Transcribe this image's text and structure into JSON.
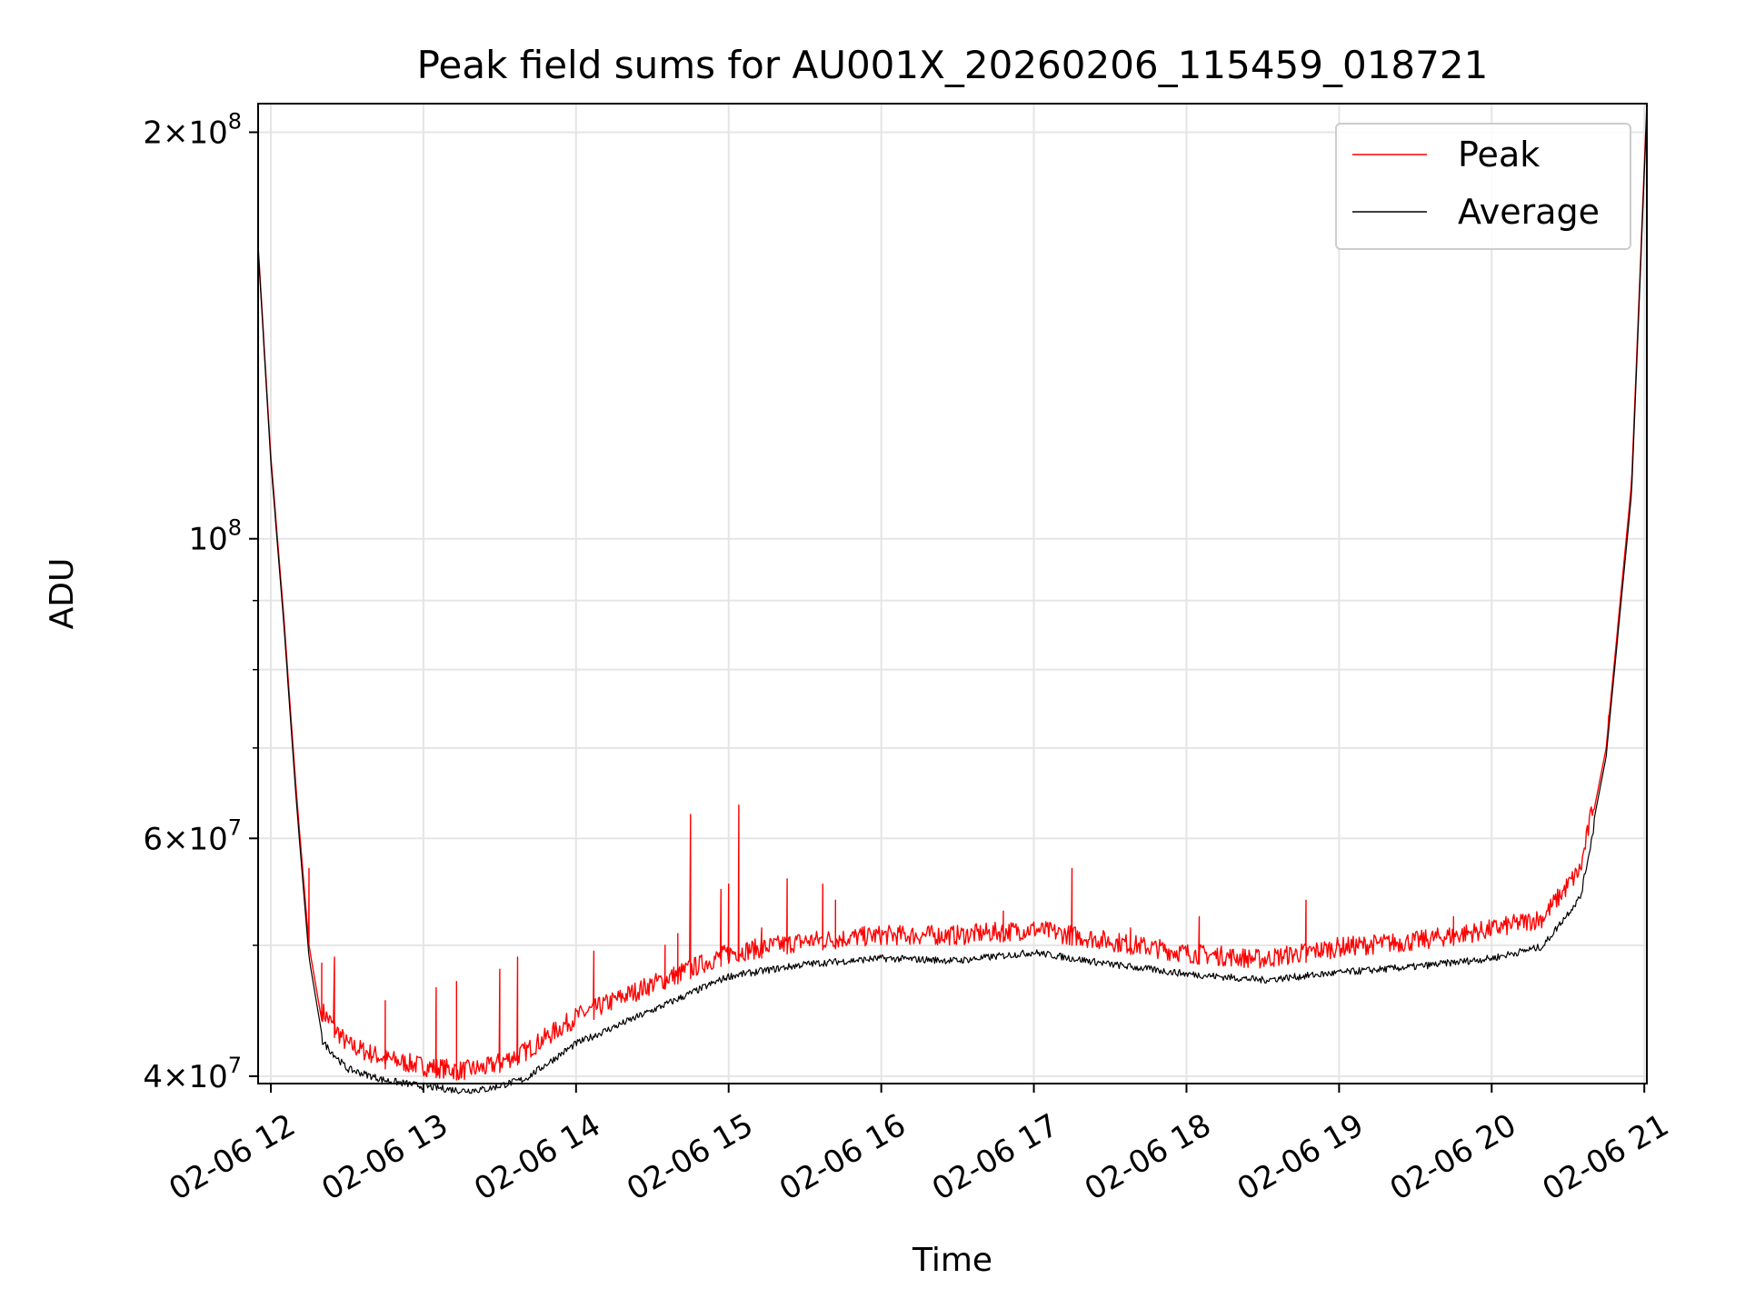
{
  "chart_data": {
    "type": "line",
    "title": "Peak field sums for AU001X_20260206_115459_018721",
    "xlabel": "Time",
    "ylabel": "ADU",
    "yscale": "log",
    "ylim": [
      39500000,
      210000000
    ],
    "xlim": [
      "2026-02-06 11:55",
      "2026-02-06 21:01"
    ],
    "grid": true,
    "legend": {
      "placement": "top-right"
    },
    "x_ticks": [
      {
        "time": "2026-02-06 12:00",
        "label": "02-06 12"
      },
      {
        "time": "2026-02-06 13:00",
        "label": "02-06 13"
      },
      {
        "time": "2026-02-06 14:00",
        "label": "02-06 14"
      },
      {
        "time": "2026-02-06 15:00",
        "label": "02-06 15"
      },
      {
        "time": "2026-02-06 16:00",
        "label": "02-06 16"
      },
      {
        "time": "2026-02-06 17:00",
        "label": "02-06 17"
      },
      {
        "time": "2026-02-06 18:00",
        "label": "02-06 18"
      },
      {
        "time": "2026-02-06 19:00",
        "label": "02-06 19"
      },
      {
        "time": "2026-02-06 20:00",
        "label": "02-06 20"
      },
      {
        "time": "2026-02-06 21:00",
        "label": "02-06 21"
      }
    ],
    "y_ticks": [
      {
        "value": 40000000,
        "mantissa": "4",
        "exp": "7"
      },
      {
        "value": 60000000,
        "mantissa": "6",
        "exp": "7"
      },
      {
        "value": 100000000,
        "mantissa": "",
        "exp": "8"
      },
      {
        "value": 200000000,
        "mantissa": "2",
        "exp": "8"
      }
    ],
    "y_minor_ticks": [
      50000000,
      70000000,
      80000000,
      90000000
    ],
    "series": [
      {
        "name": "Peak",
        "color": "#ff0000",
        "baseline_points": [
          [
            "2026-02-06 11:55",
            165000000
          ],
          [
            "2026-02-06 12:00",
            115000000
          ],
          [
            "2026-02-06 12:05",
            88000000
          ],
          [
            "2026-02-06 12:10",
            65000000
          ],
          [
            "2026-02-06 12:15",
            50000000
          ],
          [
            "2026-02-06 12:20",
            44000000
          ],
          [
            "2026-02-06 12:30",
            41500000
          ],
          [
            "2026-02-06 12:45",
            40500000
          ],
          [
            "2026-02-06 13:00",
            40000000
          ],
          [
            "2026-02-06 13:15",
            39700000
          ],
          [
            "2026-02-06 13:25",
            39900000
          ],
          [
            "2026-02-06 13:40",
            41000000
          ],
          [
            "2026-02-06 14:00",
            43500000
          ],
          [
            "2026-02-06 14:30",
            46000000
          ],
          [
            "2026-02-06 15:00",
            48500000
          ],
          [
            "2026-02-06 15:30",
            49500000
          ],
          [
            "2026-02-06 16:00",
            50000000
          ],
          [
            "2026-02-06 16:30",
            50000000
          ],
          [
            "2026-02-06 17:00",
            50500000
          ],
          [
            "2026-02-06 17:30",
            49500000
          ],
          [
            "2026-02-06 18:00",
            48500000
          ],
          [
            "2026-02-06 18:30",
            48000000
          ],
          [
            "2026-02-06 19:00",
            49000000
          ],
          [
            "2026-02-06 19:30",
            49500000
          ],
          [
            "2026-02-06 20:00",
            50500000
          ],
          [
            "2026-02-06 20:20",
            51500000
          ],
          [
            "2026-02-06 20:35",
            56000000
          ],
          [
            "2026-02-06 20:45",
            70000000
          ],
          [
            "2026-02-06 20:55",
            110000000
          ],
          [
            "2026-02-06 21:01",
            210000000
          ]
        ],
        "spikes": [
          [
            "2026-02-06 12:15",
            57000000
          ],
          [
            "2026-02-06 12:20",
            48500000
          ],
          [
            "2026-02-06 12:25",
            49000000
          ],
          [
            "2026-02-06 12:45",
            45500000
          ],
          [
            "2026-02-06 13:05",
            46500000
          ],
          [
            "2026-02-06 13:13",
            47000000
          ],
          [
            "2026-02-06 13:30",
            48000000
          ],
          [
            "2026-02-06 13:37",
            49000000
          ],
          [
            "2026-02-06 14:07",
            49500000
          ],
          [
            "2026-02-06 14:35",
            50000000
          ],
          [
            "2026-02-06 14:40",
            51000000
          ],
          [
            "2026-02-06 14:45",
            62500000
          ],
          [
            "2026-02-06 14:57",
            55000000
          ],
          [
            "2026-02-06 15:00",
            55500000
          ],
          [
            "2026-02-06 15:04",
            63500000
          ],
          [
            "2026-02-06 15:13",
            51500000
          ],
          [
            "2026-02-06 15:23",
            56000000
          ],
          [
            "2026-02-06 15:37",
            55500000
          ],
          [
            "2026-02-06 15:42",
            54000000
          ],
          [
            "2026-02-06 16:48",
            53000000
          ],
          [
            "2026-02-06 17:15",
            57000000
          ],
          [
            "2026-02-06 17:38",
            51500000
          ],
          [
            "2026-02-06 18:05",
            52500000
          ],
          [
            "2026-02-06 18:47",
            54000000
          ],
          [
            "2026-02-06 19:45",
            52500000
          ],
          [
            "2026-02-06 20:46",
            74000000
          ]
        ]
      },
      {
        "name": "Average",
        "color": "#000000",
        "baseline_points": [
          [
            "2026-02-06 11:55",
            164000000
          ],
          [
            "2026-02-06 12:00",
            114000000
          ],
          [
            "2026-02-06 12:05",
            87000000
          ],
          [
            "2026-02-06 12:10",
            64000000
          ],
          [
            "2026-02-06 12:15",
            49000000
          ],
          [
            "2026-02-06 12:20",
            43000000
          ],
          [
            "2026-02-06 12:30",
            41000000
          ],
          [
            "2026-02-06 12:45",
            40200000
          ],
          [
            "2026-02-06 13:00",
            39800000
          ],
          [
            "2026-02-06 13:15",
            39500000
          ],
          [
            "2026-02-06 13:25",
            39600000
          ],
          [
            "2026-02-06 13:40",
            40300000
          ],
          [
            "2026-02-06 14:00",
            42800000
          ],
          [
            "2026-02-06 14:30",
            45300000
          ],
          [
            "2026-02-06 15:00",
            48000000
          ],
          [
            "2026-02-06 15:30",
            49000000
          ],
          [
            "2026-02-06 16:00",
            49500000
          ],
          [
            "2026-02-06 16:30",
            49300000
          ],
          [
            "2026-02-06 17:00",
            50000000
          ],
          [
            "2026-02-06 17:30",
            49000000
          ],
          [
            "2026-02-06 18:00",
            48200000
          ],
          [
            "2026-02-06 18:30",
            47700000
          ],
          [
            "2026-02-06 19:00",
            48300000
          ],
          [
            "2026-02-06 19:30",
            48800000
          ],
          [
            "2026-02-06 20:00",
            49500000
          ],
          [
            "2026-02-06 20:20",
            50500000
          ],
          [
            "2026-02-06 20:35",
            55000000
          ],
          [
            "2026-02-06 20:45",
            69000000
          ],
          [
            "2026-02-06 20:55",
            108000000
          ],
          [
            "2026-02-06 21:01",
            208000000
          ]
        ]
      }
    ]
  }
}
